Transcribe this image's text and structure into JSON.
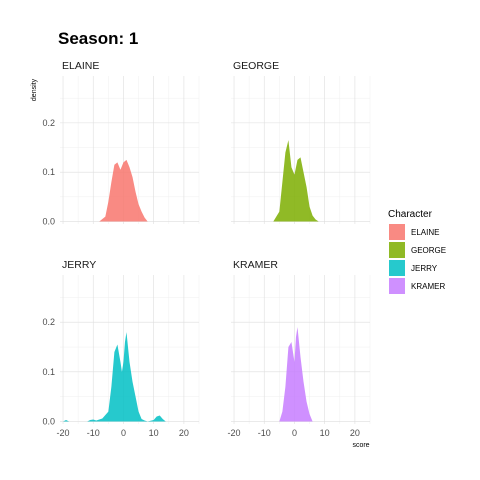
{
  "title": "Season: 1",
  "chart_data": {
    "type": "area",
    "title": "Season: 1",
    "xlabel": "score",
    "ylabel": "density",
    "xlim": [
      -21,
      25
    ],
    "ylim": [
      -0.005,
      0.295
    ],
    "x_ticks": [
      -20,
      -10,
      0,
      10,
      20
    ],
    "y_ticks": [
      0.0,
      0.1,
      0.2
    ],
    "y_tick_labels": [
      "0.0",
      "0.1",
      "0.2"
    ],
    "grid": true,
    "legend": {
      "title": "Character",
      "position": "right"
    },
    "series": [
      {
        "name": "ELAINE",
        "color": "#F8766D",
        "x": [
          -8,
          -6,
          -5,
          -4,
          -3,
          -2,
          -1,
          0,
          1,
          2,
          3,
          4,
          5,
          6,
          7,
          8
        ],
        "y": [
          0.0,
          0.01,
          0.04,
          0.08,
          0.115,
          0.12,
          0.105,
          0.12,
          0.125,
          0.11,
          0.09,
          0.06,
          0.035,
          0.02,
          0.008,
          0.0
        ]
      },
      {
        "name": "GEORGE",
        "color": "#7CAE00",
        "x": [
          -7,
          -5,
          -4,
          -3,
          -2,
          -1,
          0,
          1,
          2,
          3,
          4,
          5,
          6,
          7,
          8
        ],
        "y": [
          0.0,
          0.02,
          0.08,
          0.14,
          0.165,
          0.11,
          0.095,
          0.125,
          0.13,
          0.1,
          0.07,
          0.03,
          0.012,
          0.004,
          0.0
        ]
      },
      {
        "name": "JERRY",
        "color": "#00BFC4",
        "x": [
          -20,
          -19,
          -18,
          -12,
          -11,
          -10,
          -9,
          -7,
          -5,
          -4,
          -3,
          -2,
          -1,
          -0.5,
          0,
          0.5,
          1,
          2,
          3,
          4,
          5,
          6,
          7,
          8,
          10,
          11,
          12,
          13,
          14
        ],
        "y": [
          0.0,
          0.003,
          0.0,
          0.0,
          0.003,
          0.004,
          0.002,
          0.006,
          0.02,
          0.07,
          0.14,
          0.155,
          0.12,
          0.1,
          0.12,
          0.16,
          0.18,
          0.12,
          0.08,
          0.05,
          0.02,
          0.005,
          0.002,
          0.0,
          0.003,
          0.01,
          0.012,
          0.005,
          0.0
        ]
      },
      {
        "name": "KRAMER",
        "color": "#C77CFF",
        "x": [
          -5,
          -4,
          -3,
          -2,
          -1,
          0,
          0.5,
          1,
          2,
          3,
          4,
          5,
          6
        ],
        "y": [
          0.0,
          0.02,
          0.07,
          0.15,
          0.16,
          0.12,
          0.17,
          0.19,
          0.13,
          0.08,
          0.04,
          0.015,
          0.0
        ]
      }
    ]
  }
}
